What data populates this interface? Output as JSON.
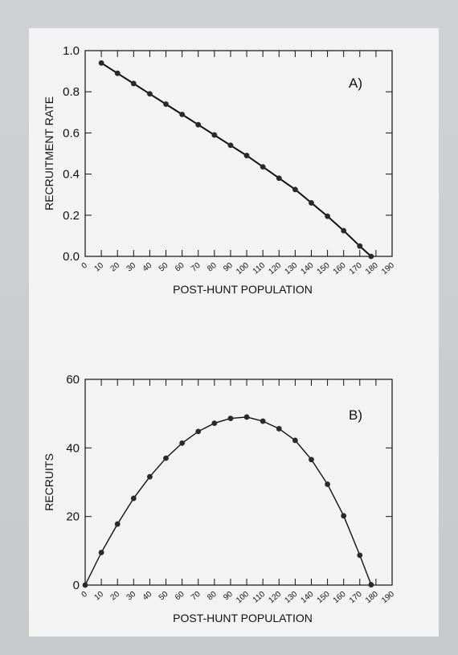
{
  "chart_data": [
    {
      "type": "line",
      "panel_label": "A)",
      "xlabel": "POST-HUNT POPULATION",
      "ylabel": "RECRUITMENT RATE",
      "xlim": [
        0,
        190
      ],
      "ylim": [
        0,
        1.0
      ],
      "x_ticks": [
        0,
        10,
        20,
        30,
        40,
        50,
        60,
        70,
        80,
        90,
        100,
        110,
        120,
        130,
        140,
        150,
        160,
        170,
        180,
        190
      ],
      "y_ticks": [
        0.0,
        0.2,
        0.4,
        0.6,
        0.8,
        1.0
      ],
      "y_tick_labels": [
        "0.0",
        "0.2",
        "0.4",
        "0.6",
        "0.8",
        "1.0"
      ],
      "grid": false,
      "line_color": "#111111",
      "marker_color": "#2a2a2a",
      "series": [
        {
          "x": [
            10,
            20,
            30,
            40,
            50,
            60,
            70,
            80,
            90,
            100,
            110,
            120,
            130,
            140,
            150,
            160,
            170,
            177
          ],
          "y": [
            0.94,
            0.89,
            0.84,
            0.79,
            0.74,
            0.69,
            0.64,
            0.59,
            0.54,
            0.49,
            0.435,
            0.38,
            0.325,
            0.26,
            0.195,
            0.125,
            0.05,
            0.0
          ]
        }
      ]
    },
    {
      "type": "line",
      "panel_label": "B)",
      "xlabel": "POST-HUNT POPULATION",
      "ylabel": "RECRUITS",
      "xlim": [
        0,
        190
      ],
      "ylim": [
        0,
        60
      ],
      "x_ticks": [
        0,
        10,
        20,
        30,
        40,
        50,
        60,
        70,
        80,
        90,
        100,
        110,
        120,
        130,
        140,
        150,
        160,
        170,
        180,
        190
      ],
      "y_ticks": [
        0,
        20,
        40,
        60
      ],
      "y_tick_labels": [
        "0",
        "20",
        "40",
        "60"
      ],
      "grid": false,
      "line_color": "#111111",
      "marker_color": "#2a2a2a",
      "series": [
        {
          "x": [
            0,
            10,
            20,
            30,
            40,
            50,
            60,
            70,
            80,
            90,
            100,
            110,
            120,
            130,
            140,
            150,
            160,
            170,
            177
          ],
          "y": [
            0,
            9.5,
            17.8,
            25.3,
            31.6,
            37.0,
            41.4,
            44.8,
            47.2,
            48.6,
            49.0,
            47.8,
            45.6,
            42.2,
            36.6,
            29.4,
            20.2,
            8.7,
            0.1
          ]
        }
      ]
    }
  ]
}
